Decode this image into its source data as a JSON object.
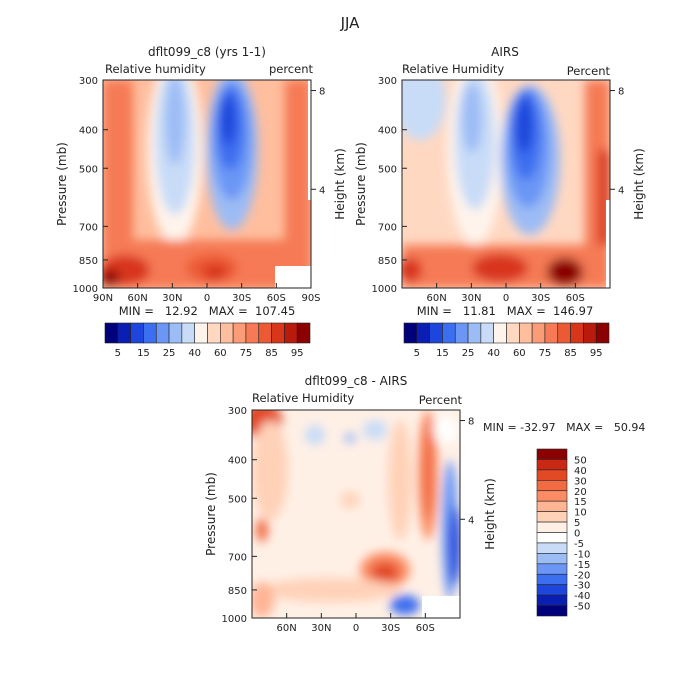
{
  "figure_title": "JJA",
  "colors": {
    "upper_scale": [
      "#00007a",
      "#0a1eb4",
      "#1e46dc",
      "#3c6ef0",
      "#6b96f5",
      "#9cbcf5",
      "#c8dcf8",
      "#fff4ec",
      "#ffd8c2",
      "#ffbe9e",
      "#fb9c78",
      "#f57a55",
      "#ec5a35",
      "#d8361a",
      "#b81a0c",
      "#8b0000"
    ],
    "diff_scale": [
      "#00007a",
      "#0a1eb4",
      "#1e46dc",
      "#3c6ef0",
      "#6b96f5",
      "#9cbcf5",
      "#c8dcf8",
      "#ffffff",
      "#fff0e6",
      "#ffd2b8",
      "#ffb494",
      "#fb8c64",
      "#f06a42",
      "#e24a26",
      "#c82814",
      "#8b0000"
    ]
  },
  "chart_data": [
    {
      "type": "heatmap",
      "panel": "model",
      "title": "dflt099_c8 (yrs 1-1)",
      "left_label": "Relative humidity",
      "right_label": "percent",
      "ylabel": "Pressure (mb)",
      "ylabel_right": "Height (km)",
      "xticks": [
        "90N",
        "60N",
        "30N",
        "0",
        "30S",
        "60S",
        "90S"
      ],
      "x_values": [
        90,
        60,
        30,
        0,
        -30,
        -60,
        -90
      ],
      "xlim": [
        90,
        -90
      ],
      "yticks": [
        300,
        400,
        500,
        700,
        850,
        1000
      ],
      "ylim": [
        1000,
        300
      ],
      "y_scale": "log",
      "height_ticks": [
        "8",
        "4"
      ],
      "height_km": [
        8,
        4
      ],
      "min": 12.92,
      "max": 107.45,
      "stats_text": "MIN =   12.92   MAX =  107.45",
      "colorbar_labels": [
        "5",
        "15",
        "25",
        "40",
        "60",
        "75",
        "85",
        "95"
      ]
    },
    {
      "type": "heatmap",
      "panel": "obs",
      "title": "AIRS",
      "left_label": "Relative Humidity",
      "right_label": "Percent",
      "ylabel": "Pressure (mb)",
      "ylabel_right": "Height (km)",
      "xticks": [
        "60N",
        "30N",
        "0",
        "30S",
        "60S"
      ],
      "x_values": [
        60,
        30,
        0,
        -30,
        -60
      ],
      "xlim": [
        90,
        -90
      ],
      "yticks": [
        300,
        400,
        500,
        700,
        850,
        1000
      ],
      "ylim": [
        1000,
        300
      ],
      "y_scale": "log",
      "height_ticks": [
        "8",
        "4"
      ],
      "height_km": [
        8,
        4
      ],
      "min": 11.81,
      "max": 146.97,
      "stats_text": "MIN =   11.81   MAX =  146.97",
      "colorbar_labels": [
        "5",
        "15",
        "25",
        "40",
        "60",
        "75",
        "85",
        "95"
      ]
    },
    {
      "type": "heatmap",
      "panel": "difference",
      "title": "dflt099_c8 - AIRS",
      "left_label": "Relative Humidity",
      "right_label": "Percent",
      "ylabel": "Pressure (mb)",
      "ylabel_right": "Height (km)",
      "xticks": [
        "60N",
        "30N",
        "0",
        "30S",
        "60S"
      ],
      "x_values": [
        60,
        30,
        0,
        -30,
        -60
      ],
      "xlim": [
        90,
        -90
      ],
      "yticks": [
        300,
        400,
        500,
        700,
        850,
        1000
      ],
      "ylim": [
        1000,
        300
      ],
      "y_scale": "log",
      "height_ticks": [
        "8",
        "4"
      ],
      "height_km": [
        8,
        4
      ],
      "min": -32.97,
      "max": 50.94,
      "stats_text": "MIN = -32.97   MAX =   50.94",
      "colorbar_labels": [
        "50",
        "40",
        "30",
        "20",
        "15",
        "10",
        "5",
        "0",
        "-5",
        "-10",
        "-15",
        "-20",
        "-30",
        "-40",
        "-50"
      ]
    }
  ]
}
